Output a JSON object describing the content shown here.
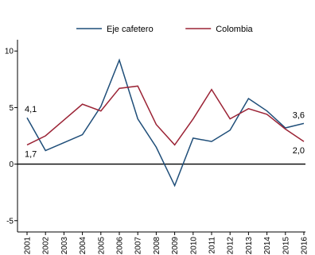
{
  "chart_data": {
    "type": "line",
    "x": [
      "2001",
      "2002",
      "2003",
      "2004",
      "2005",
      "2006",
      "2007",
      "2008",
      "2009",
      "2010",
      "2011",
      "2012",
      "2013",
      "2014",
      "2015",
      "2016"
    ],
    "series": [
      {
        "name": "Eje cafetero",
        "color": "#1f4e79",
        "values": [
          4.1,
          1.2,
          1.9,
          2.6,
          5.1,
          9.2,
          4.0,
          1.5,
          -1.9,
          2.3,
          2.0,
          3.0,
          5.8,
          4.7,
          3.2,
          3.6
        ]
      },
      {
        "name": "Colombia",
        "color": "#9b2335",
        "values": [
          1.7,
          2.5,
          3.9,
          5.3,
          4.7,
          6.7,
          6.9,
          3.5,
          1.7,
          4.0,
          6.6,
          4.0,
          4.9,
          4.4,
          3.1,
          2.0
        ]
      }
    ],
    "yticks": [
      -5,
      0,
      5,
      10
    ],
    "ytick_labels": [
      "-5",
      "0",
      "5",
      "10"
    ],
    "ylim": [
      -6,
      11
    ],
    "data_labels": [
      {
        "series": 0,
        "index": 0,
        "text": "4,1"
      },
      {
        "series": 1,
        "index": 0,
        "text": "1,7"
      },
      {
        "series": 0,
        "index": 15,
        "text": "3,6"
      },
      {
        "series": 1,
        "index": 15,
        "text": "2,0"
      }
    ],
    "legend_position": "top",
    "zero_line": true,
    "grid": false,
    "title": "",
    "xlabel": "",
    "ylabel": ""
  }
}
